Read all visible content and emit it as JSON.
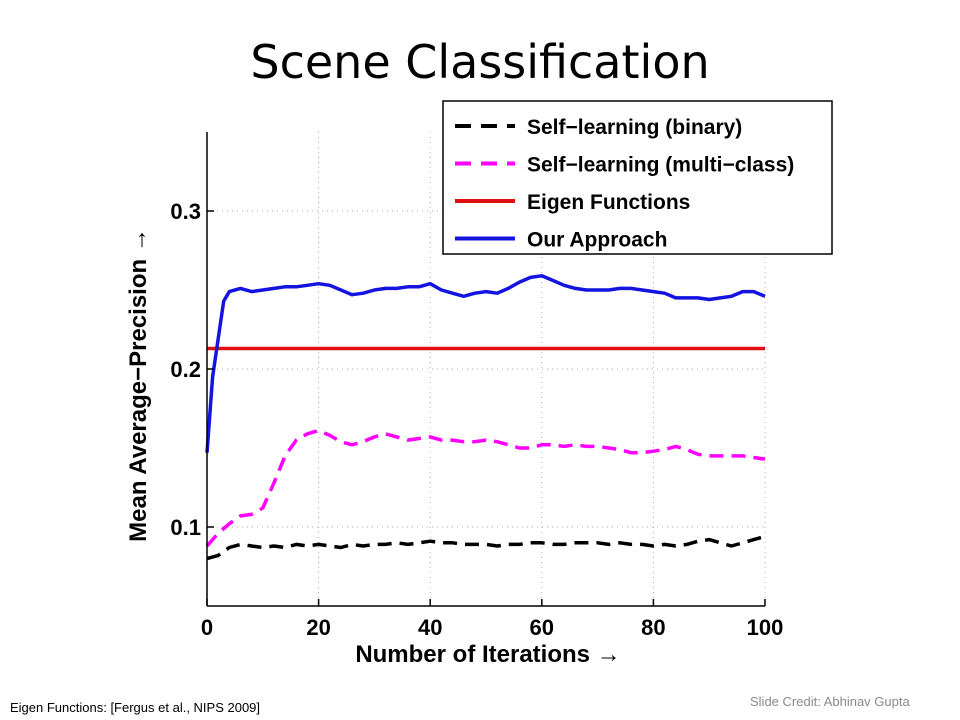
{
  "slide": {
    "title": "Scene Classification",
    "footnote": "Eigen Functions:  [Fergus et al., NIPS 2009]",
    "credit": "Slide Credit: Abhinav Gupta"
  },
  "chart_data": {
    "type": "line",
    "xlabel": "Number of Iterations →",
    "ylabel": "Mean Average−Precision →",
    "xlim": [
      0,
      100
    ],
    "ylim": [
      0.05,
      0.35
    ],
    "xticks": [
      0,
      20,
      40,
      60,
      80,
      100
    ],
    "xtick_labels": [
      "0",
      "20",
      "40",
      "60",
      "80",
      "100"
    ],
    "yticks": [
      0.1,
      0.2,
      0.3
    ],
    "ytick_labels": [
      "0.1",
      "0.2",
      "0.3"
    ],
    "grid": true,
    "legend_position": "top-right",
    "series": [
      {
        "name": "Self−learning (binary)",
        "color": "#000000",
        "style": "dashed",
        "x": [
          0,
          2,
          4,
          6,
          8,
          10,
          12,
          14,
          16,
          18,
          20,
          22,
          24,
          26,
          28,
          30,
          32,
          34,
          36,
          38,
          40,
          42,
          44,
          46,
          48,
          50,
          52,
          54,
          56,
          58,
          60,
          62,
          64,
          66,
          68,
          70,
          72,
          74,
          76,
          78,
          80,
          82,
          84,
          86,
          88,
          90,
          92,
          94,
          96,
          98,
          100
        ],
        "values": [
          0.08,
          0.082,
          0.087,
          0.089,
          0.088,
          0.087,
          0.088,
          0.087,
          0.089,
          0.088,
          0.089,
          0.088,
          0.087,
          0.089,
          0.088,
          0.089,
          0.089,
          0.09,
          0.089,
          0.09,
          0.091,
          0.09,
          0.09,
          0.089,
          0.089,
          0.089,
          0.088,
          0.089,
          0.089,
          0.09,
          0.09,
          0.089,
          0.089,
          0.09,
          0.09,
          0.09,
          0.089,
          0.09,
          0.089,
          0.089,
          0.088,
          0.089,
          0.088,
          0.089,
          0.091,
          0.092,
          0.09,
          0.088,
          0.09,
          0.092,
          0.094
        ]
      },
      {
        "name": "Self−learning (multi−class)",
        "color": "#ff00ff",
        "style": "dashed",
        "x": [
          0,
          2,
          4,
          6,
          8,
          10,
          12,
          14,
          16,
          18,
          20,
          22,
          24,
          26,
          28,
          30,
          32,
          34,
          36,
          38,
          40,
          42,
          44,
          46,
          48,
          50,
          52,
          54,
          56,
          58,
          60,
          62,
          64,
          66,
          68,
          70,
          72,
          74,
          76,
          78,
          80,
          82,
          84,
          86,
          88,
          90,
          92,
          94,
          96,
          98,
          100
        ],
        "values": [
          0.088,
          0.096,
          0.102,
          0.107,
          0.108,
          0.112,
          0.128,
          0.145,
          0.155,
          0.159,
          0.161,
          0.158,
          0.154,
          0.152,
          0.154,
          0.157,
          0.159,
          0.157,
          0.155,
          0.156,
          0.157,
          0.155,
          0.155,
          0.154,
          0.154,
          0.155,
          0.154,
          0.152,
          0.15,
          0.15,
          0.152,
          0.152,
          0.151,
          0.152,
          0.151,
          0.151,
          0.15,
          0.149,
          0.147,
          0.147,
          0.148,
          0.149,
          0.151,
          0.149,
          0.146,
          0.145,
          0.145,
          0.145,
          0.145,
          0.144,
          0.143
        ]
      },
      {
        "name": "Eigen Functions",
        "color": "#e01010",
        "style": "solid",
        "x": [
          0,
          100
        ],
        "values": [
          0.213,
          0.213
        ]
      },
      {
        "name": "Our Approach",
        "color": "#1414e0",
        "style": "solid",
        "x": [
          0,
          1,
          3,
          4,
          6,
          8,
          10,
          12,
          14,
          16,
          18,
          20,
          22,
          24,
          26,
          28,
          30,
          32,
          34,
          36,
          38,
          40,
          42,
          44,
          46,
          48,
          50,
          52,
          54,
          56,
          58,
          60,
          62,
          64,
          66,
          68,
          70,
          72,
          74,
          76,
          78,
          80,
          82,
          84,
          86,
          88,
          90,
          92,
          94,
          96,
          98,
          100
        ],
        "values": [
          0.147,
          0.195,
          0.243,
          0.249,
          0.251,
          0.249,
          0.25,
          0.251,
          0.252,
          0.252,
          0.253,
          0.254,
          0.253,
          0.25,
          0.247,
          0.248,
          0.25,
          0.251,
          0.251,
          0.252,
          0.252,
          0.254,
          0.25,
          0.248,
          0.246,
          0.248,
          0.249,
          0.248,
          0.251,
          0.255,
          0.258,
          0.259,
          0.256,
          0.253,
          0.251,
          0.25,
          0.25,
          0.25,
          0.251,
          0.251,
          0.25,
          0.249,
          0.248,
          0.245,
          0.245,
          0.245,
          0.244,
          0.245,
          0.246,
          0.249,
          0.249,
          0.246
        ]
      }
    ]
  }
}
